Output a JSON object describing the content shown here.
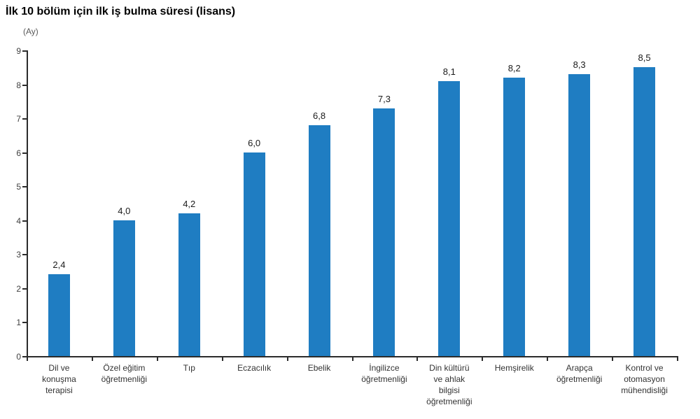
{
  "title": "İlk 10 bölüm için ilk iş bulma süresi (lisans)",
  "axis_unit": "(Ay)",
  "colors": {
    "bar": "#1F7DC2",
    "axis": "#2b2b2b",
    "tick_text": "#404040",
    "value_text": "#1a1a1a",
    "title_text": "#000000"
  },
  "chart_data": {
    "type": "bar",
    "title": "İlk 10 bölüm için ilk iş bulma süresi (lisans)",
    "unit_label": "(Ay)",
    "xlabel": "",
    "ylabel": "(Ay)",
    "ylim": [
      0,
      9
    ],
    "y_ticks": [
      0,
      1,
      2,
      3,
      4,
      5,
      6,
      7,
      8,
      9
    ],
    "grid": false,
    "legend_position": "none",
    "categories": [
      "Dil ve\nkonuşma\nterapisi",
      "Özel eğitim\nöğretmenliği",
      "Tıp",
      "Eczacılık",
      "Ebelik",
      "İngilizce\nöğretmenliği",
      "Din kültürü\nve ahlak\nbilgisi\nöğretmenliği",
      "Hemşirelik",
      "Arapça\nöğretmenliği",
      "Kontrol ve\notomasyon\nmühendisliği"
    ],
    "values": [
      2.4,
      4.0,
      4.2,
      6.0,
      6.8,
      7.3,
      8.1,
      8.2,
      8.3,
      8.5
    ],
    "value_labels": [
      "2,4",
      "4,0",
      "4,2",
      "6,0",
      "6,8",
      "7,3",
      "8,1",
      "8,2",
      "8,3",
      "8,5"
    ]
  }
}
